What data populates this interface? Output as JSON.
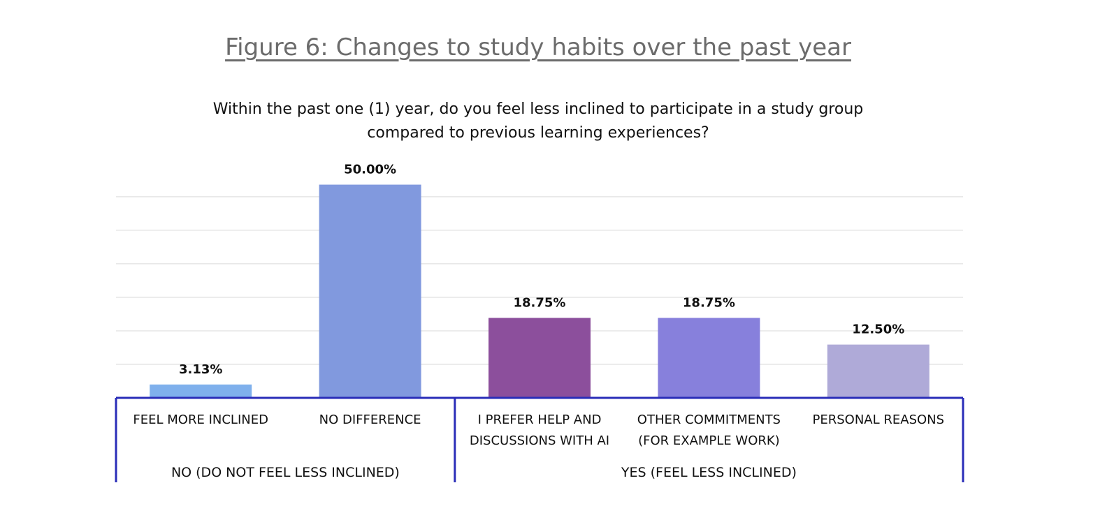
{
  "title": "Figure 6: Changes to study habits over the past year",
  "subtitle": "Within the past one (1) year, do you feel less inclined to participate in a study group compared to previous learning experiences?",
  "chart_data": {
    "type": "bar",
    "categories": [
      [
        "FEEL MORE INCLINED"
      ],
      [
        "NO DIFFERENCE"
      ],
      [
        "I PREFER HELP AND",
        "DISCUSSIONS WITH AI"
      ],
      [
        "OTHER COMMITMENTS",
        "(FOR EXAMPLE WORK)"
      ],
      [
        "PERSONAL REASONS"
      ]
    ],
    "values": [
      3.13,
      50.0,
      18.75,
      18.75,
      12.5
    ],
    "data_labels": [
      "3.13%",
      "50.00%",
      "18.75%",
      "18.75%",
      "12.50%"
    ],
    "colors": [
      "#7fb0ec",
      "#8199de",
      "#8c4f9c",
      "#8780dc",
      "#afaad8"
    ],
    "groups": [
      {
        "label": "NO (DO NOT FEEL LESS INCLINED)",
        "categories": [
          0,
          1
        ]
      },
      {
        "label": "YES (FEEL LESS INCLINED)",
        "categories": [
          2,
          3,
          4
        ]
      }
    ],
    "ylim": [
      0,
      55
    ],
    "y_gridline_step": 7.86,
    "grid": true,
    "y_axis_labels_shown": false,
    "grid_color": "#d9d9d9",
    "axis_color": "#2a2db8"
  }
}
